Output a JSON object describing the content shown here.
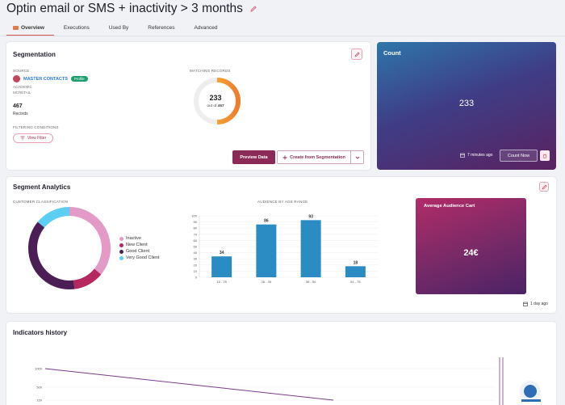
{
  "page": {
    "title": "Optin email or SMS + inactivity > 3 months"
  },
  "tabs": [
    {
      "label": "Overview",
      "active": true
    },
    {
      "label": "Executions"
    },
    {
      "label": "Used By"
    },
    {
      "label": "References"
    },
    {
      "label": "Advanced"
    }
  ],
  "segmentation": {
    "title": "Segmentation",
    "source_label": "SOURCE",
    "source_name": "MASTER CONTACTS",
    "source_badge": "Profile",
    "source_line1": "ACADEMIC",
    "source_line2": "MCRETAIL",
    "records_count": "467",
    "records_label": "Records",
    "filtering_label": "FILTERING CONDITIONS",
    "view_filter_label": "View Filter",
    "matching_label": "MATCHING RECORDS",
    "matching_value": "233",
    "matching_out_of_prefix": "out of",
    "matching_total": "467",
    "matching_fraction": 0.499,
    "preview_label": "Preview Data",
    "create_label": "Create from Segmentation"
  },
  "count_card": {
    "title": "Count",
    "value": "233",
    "ago": "7 minutes ago",
    "count_now_label": "Count Now"
  },
  "analytics": {
    "title": "Segment Analytics",
    "customer_label": "CUSTOMER CLASSIFICATION",
    "age_label": "AUDIENCE BY AGE RANGE",
    "avg_title": "Average Audience Cart",
    "avg_value": "24€",
    "ago": "1 day ago"
  },
  "indicators": {
    "title": "Indicators history"
  },
  "colors": {
    "accent": "#8b2a57",
    "inactive": "#e49ac6",
    "new_client": "#b5285f",
    "good_client": "#4b1f55",
    "very_good_client": "#5ccdf3",
    "bar": "#2a8cc3"
  },
  "chart_data": [
    {
      "type": "pie",
      "categories": [
        "Inactive",
        "New Client",
        "Good Client",
        "Very Good Client"
      ],
      "values": [
        36,
        12,
        38,
        14
      ],
      "legend": "right"
    },
    {
      "type": "bar",
      "categories": [
        "15 - 25",
        "26 - 35",
        "36 - 50",
        "51 - 75"
      ],
      "values": [
        34,
        86,
        93,
        18
      ],
      "ylim": [
        0,
        100
      ],
      "yticks": [
        0,
        10,
        20,
        30,
        40,
        50,
        60,
        70,
        80,
        90,
        100
      ]
    },
    {
      "type": "line",
      "yticks": [
        1000,
        500,
        150
      ],
      "series": [
        {
          "values": [
            1000,
            150
          ]
        }
      ]
    }
  ]
}
